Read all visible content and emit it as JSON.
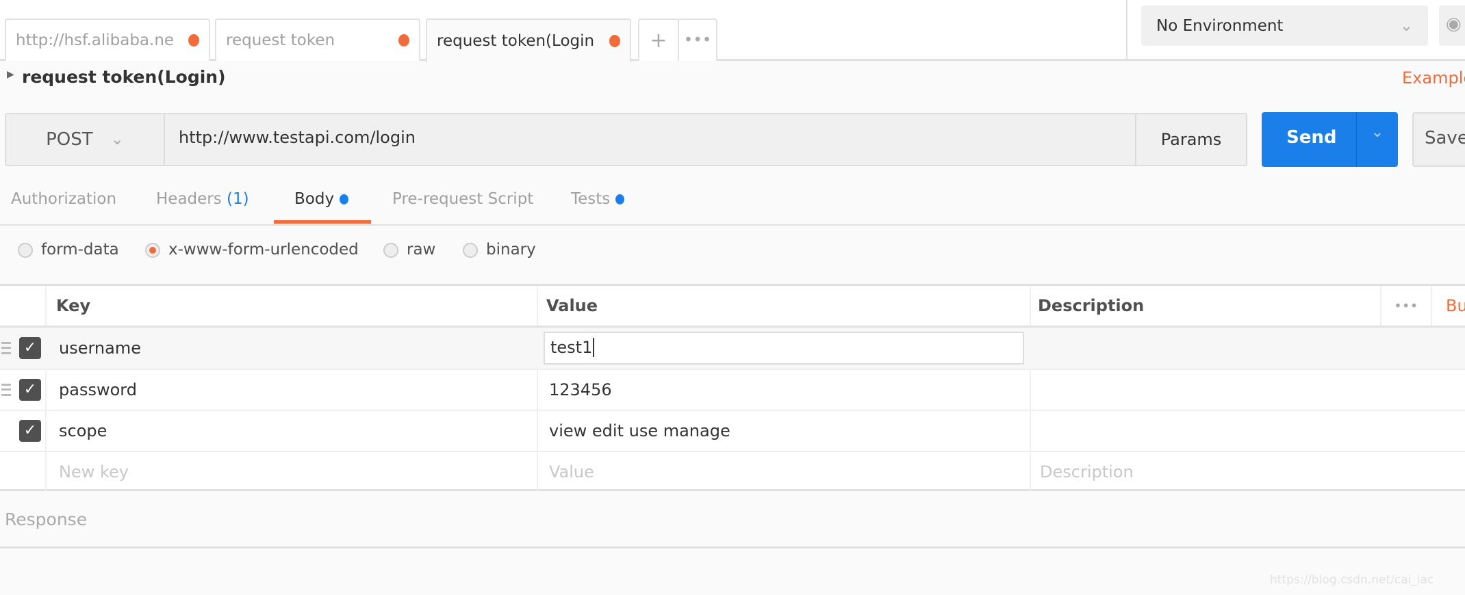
{
  "tabs": [
    {
      "label": "http://hsf.alibaba.ne",
      "unsaved": true
    },
    {
      "label": "request token",
      "unsaved": true
    },
    {
      "label": "request token(Login",
      "unsaved": true
    }
  ],
  "tab_actions": {
    "add": "+",
    "more": "•••"
  },
  "environment": {
    "selected": "No Environment"
  },
  "request": {
    "title": "request token(Login)",
    "examples_label": "Example",
    "method": "POST",
    "url": "http://www.testapi.com/login",
    "params_label": "Params",
    "send_label": "Send",
    "save_label": "Save"
  },
  "request_tabs": [
    {
      "label": "Authorization"
    },
    {
      "label": "Headers",
      "count": "(1)"
    },
    {
      "label": "Body",
      "active": true
    },
    {
      "label": "Pre-request Script"
    },
    {
      "label": "Tests"
    }
  ],
  "body_types": [
    {
      "label": "form-data",
      "selected": false
    },
    {
      "label": "x-www-form-urlencoded",
      "selected": true
    },
    {
      "label": "raw",
      "selected": false
    },
    {
      "label": "binary",
      "selected": false
    }
  ],
  "table": {
    "headers": {
      "key": "Key",
      "value": "Value",
      "description": "Description",
      "more": "•••",
      "bulk": "Bu"
    },
    "rows": [
      {
        "key": "username",
        "value": "test1",
        "checked": true
      },
      {
        "key": "password",
        "value": "123456",
        "checked": true
      },
      {
        "key": "scope",
        "value": "view edit use manage",
        "checked": true
      }
    ],
    "placeholders": {
      "key": "New key",
      "value": "Value",
      "description": "Description"
    }
  },
  "response_label": "Response",
  "watermark": "https://blog.csdn.net/cai_iac",
  "colors": {
    "accent": "#f26b3a",
    "primary": "#1a7fe8"
  }
}
